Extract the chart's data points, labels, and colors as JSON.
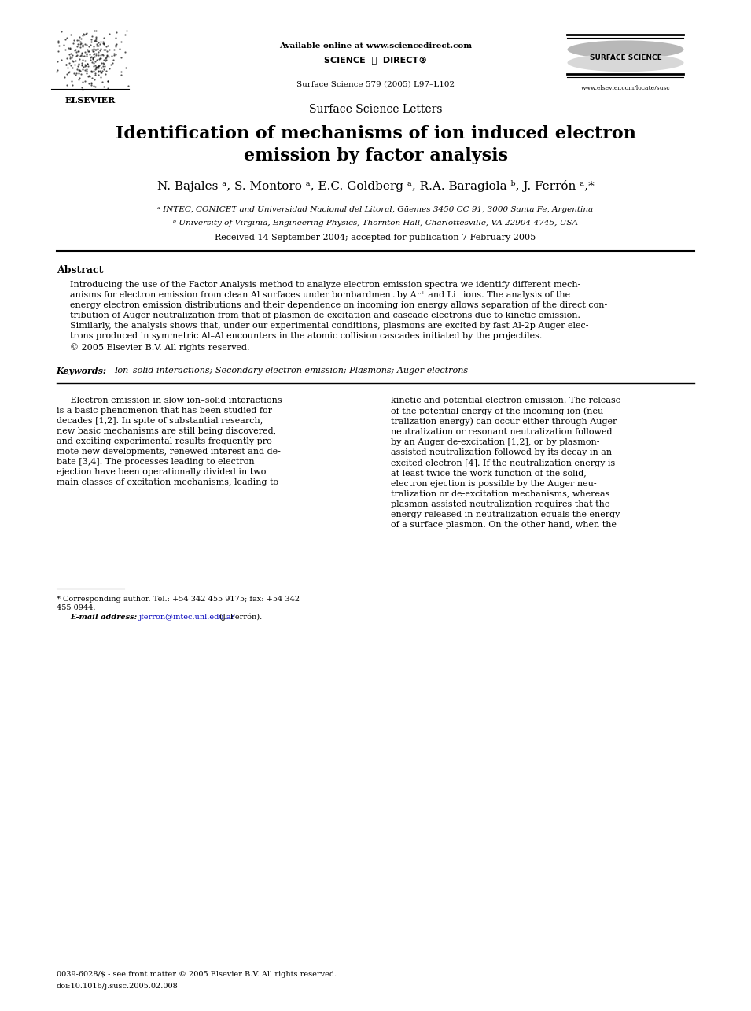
{
  "page_width": 9.55,
  "page_height": 12.85,
  "background_color": "#ffffff",
  "header": {
    "available_online": "Available online at www.sciencedirect.com",
    "journal_ref": "Surface Science 579 (2005) L97–L102",
    "website": "www.elsevier.com/locate/susc",
    "elsevier_label": "ELSEVIER",
    "surface_science_label": "SURFACE SCIENCE"
  },
  "section_label": "Surface Science Letters",
  "title": "Identification of mechanisms of ion induced electron\nemission by factor analysis",
  "authors": "N. Bajales ᵃ, S. Montoro ᵃ, E.C. Goldberg ᵃ, R.A. Baragiola ᵇ, J. Ferrón ᵃ,*",
  "affil_a": "ᵃ INTEC, CONICET and Universidad Nacional del Litoral, Güemes 3450 CC 91, 3000 Santa Fe, Argentina",
  "affil_b": "ᵇ University of Virginia, Engineering Physics, Thornton Hall, Charlottesville, VA 22904-4745, USA",
  "received": "Received 14 September 2004; accepted for publication 7 February 2005",
  "abstract_title": "Abstract",
  "abstract_text": "Introducing the use of the Factor Analysis method to analyze electron emission spectra we identify different mech-\nanisms for electron emission from clean Al surfaces under bombardment by Ar⁺ and Li⁺ ions. The analysis of the\nenergy electron emission distributions and their dependence on incoming ion energy allows separation of the direct con-\ntribution of Auger neutralization from that of plasmon de-excitation and cascade electrons due to kinetic emission.\nSimilarly, the analysis shows that, under our experimental conditions, plasmons are excited by fast Al-2p Auger elec-\ntrons produced in symmetric Al–Al encounters in the atomic collision cascades initiated by the projectiles.\n© 2005 Elsevier B.V. All rights reserved.",
  "keywords_label": "Keywords:",
  "keywords": "Ion–solid interactions; Secondary electron emission; Plasmons; Auger electrons",
  "body_left": "     Electron emission in slow ion–solid interactions\nis a basic phenomenon that has been studied for\ndecades [1,2]. In spite of substantial research,\nnew basic mechanisms are still being discovered,\nand exciting experimental results frequently pro-\nmote new developments, renewed interest and de-\nbate [3,4]. The processes leading to electron\nejection have been operationally divided in two\nmain classes of excitation mechanisms, leading to",
  "body_right": "kinetic and potential electron emission. The release\nof the potential energy of the incoming ion (neu-\ntralization energy) can occur either through Auger\nneutralization or resonant neutralization followed\nby an Auger de-excitation [1,2], or by plasmon-\nassisted neutralization followed by its decay in an\nexcited electron [4]. If the neutralization energy is\nat least twice the work function of the solid,\nelectron ejection is possible by the Auger neu-\ntralization or de-excitation mechanisms, whereas\nplasmon-assisted neutralization requires that the\nenergy released in neutralization equals the energy\nof a surface plasmon. On the other hand, when the",
  "footnote_star": "* Corresponding author. Tel.: +54 342 455 9175; fax: +54 342\n455 0944.",
  "footnote_email_label": "E-mail address:",
  "footnote_email": "jferron@intec.unl.edu.ar",
  "footnote_email_suffix": " (J. Ferrón).",
  "footer_line1": "0039-6028/$ - see front matter © 2005 Elsevier B.V. All rights reserved.",
  "footer_line2": "doi:10.1016/j.susc.2005.02.008"
}
